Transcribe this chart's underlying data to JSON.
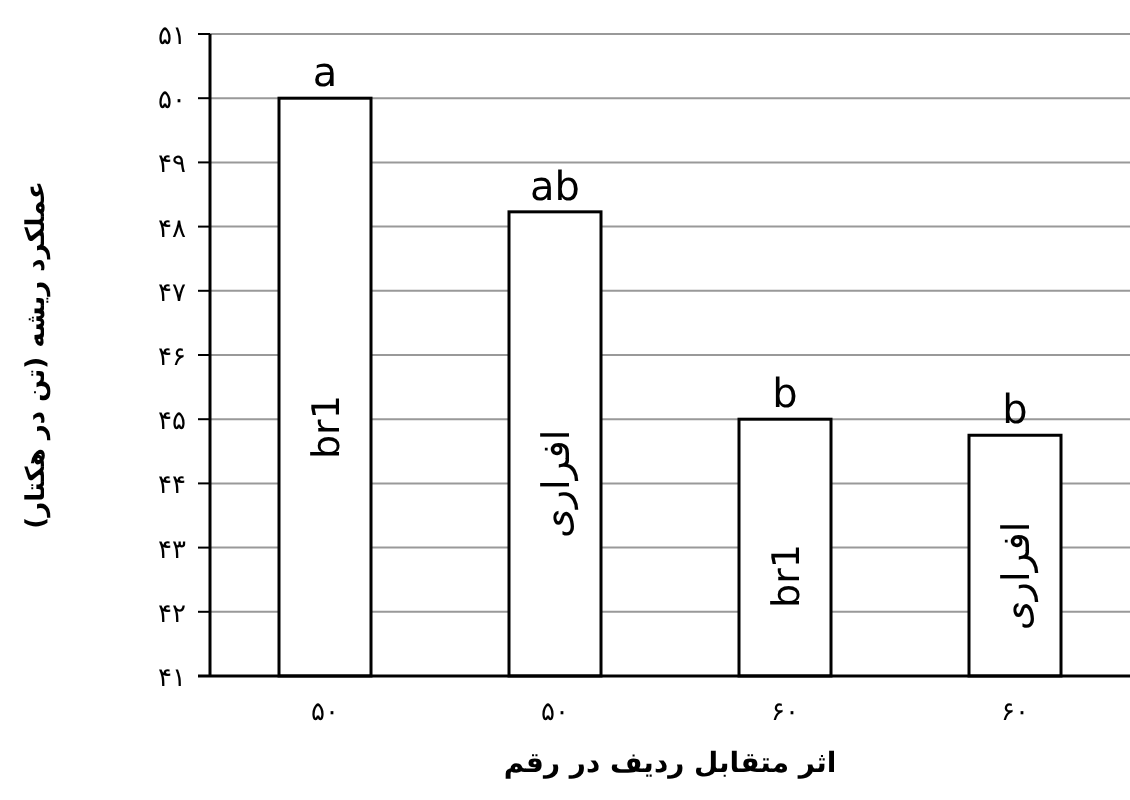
{
  "chart_data": {
    "type": "bar",
    "categories": [
      "۵۰",
      "۵۰",
      "۶۰",
      "۶۰"
    ],
    "values": [
      50,
      48.23,
      45,
      44.75
    ],
    "color": "#ffffff",
    "ylim": [
      41,
      51
    ],
    "yticks": [
      {
        "value": 41,
        "label": "۴۱"
      },
      {
        "value": 42,
        "label": "۴۲"
      },
      {
        "value": 43,
        "label": "۴۳"
      },
      {
        "value": 44,
        "label": "۴۴"
      },
      {
        "value": 45,
        "label": "۴۵"
      },
      {
        "value": 46,
        "label": "۴۶"
      },
      {
        "value": 47,
        "label": "۴۷"
      },
      {
        "value": 48,
        "label": "۴۸"
      },
      {
        "value": 49,
        "label": "۴۹"
      },
      {
        "value": 50,
        "label": "۵۰"
      },
      {
        "value": 51,
        "label": "۵۱"
      }
    ],
    "grid": "y",
    "xlabel": "اثر متقابل ردیف در رقم",
    "ylabel": "عملکرد ریشه (تن در هکتار)",
    "annotations": [
      {
        "text": "a",
        "y": 50
      },
      {
        "text": "ab",
        "y": 48.23
      },
      {
        "text": "b",
        "y": 45
      },
      {
        "text": "b",
        "y": 44.75
      },
      "br1",
      "افراری",
      "br1",
      "افراری"
    ]
  }
}
